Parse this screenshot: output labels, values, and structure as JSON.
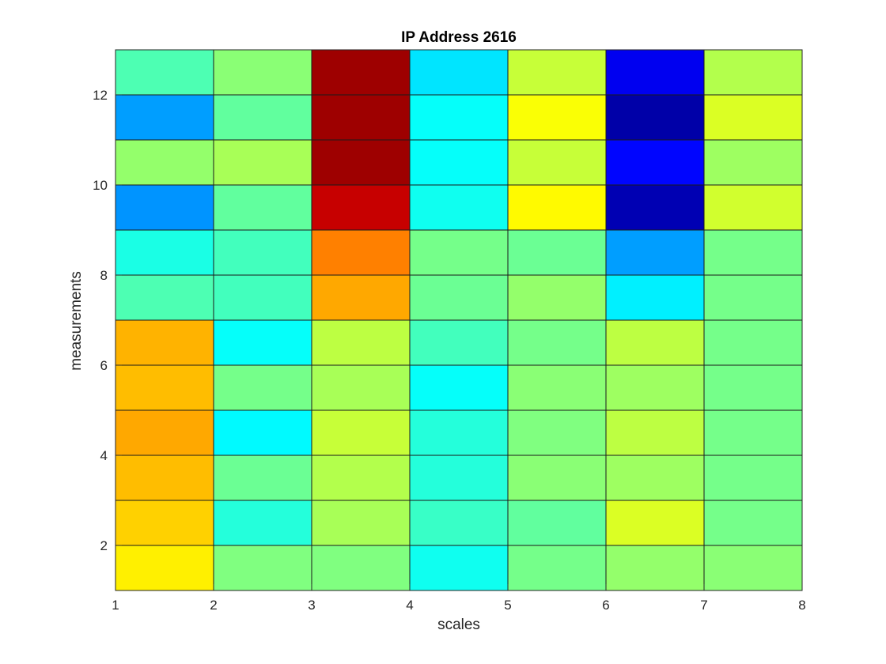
{
  "chart_data": {
    "type": "heatmap",
    "title": "IP Address 2616",
    "xlabel": "scales",
    "ylabel": "measurements",
    "xlim": [
      1,
      8
    ],
    "ylim": [
      1,
      13
    ],
    "x_ticks": [
      "1",
      "2",
      "3",
      "4",
      "5",
      "6",
      "7",
      "8"
    ],
    "y_ticks": [
      "2",
      "4",
      "6",
      "8",
      "10",
      "12"
    ],
    "grid": true,
    "colormap": "jet",
    "color_scale_min": 0,
    "color_scale_max": 1,
    "x_edges": [
      1,
      2,
      3,
      4,
      5,
      6,
      7,
      8
    ],
    "y_edges": [
      1,
      2,
      3,
      4,
      5,
      6,
      7,
      8,
      9,
      10,
      11,
      12,
      13
    ],
    "values_top_to_bottom": [
      [
        0.45,
        0.51,
        0.97,
        0.35,
        0.57,
        0.11,
        0.55
      ],
      [
        0.28,
        0.47,
        0.97,
        0.38,
        0.62,
        0.04,
        0.59
      ],
      [
        0.52,
        0.54,
        0.97,
        0.38,
        0.57,
        0.13,
        0.53
      ],
      [
        0.27,
        0.47,
        0.93,
        0.39,
        0.63,
        0.05,
        0.58
      ],
      [
        0.4,
        0.44,
        0.75,
        0.49,
        0.48,
        0.28,
        0.49
      ],
      [
        0.45,
        0.44,
        0.71,
        0.48,
        0.52,
        0.36,
        0.49
      ],
      [
        0.7,
        0.38,
        0.56,
        0.44,
        0.49,
        0.56,
        0.49
      ],
      [
        0.69,
        0.49,
        0.54,
        0.38,
        0.51,
        0.53,
        0.49
      ],
      [
        0.71,
        0.37,
        0.57,
        0.41,
        0.5,
        0.56,
        0.49
      ],
      [
        0.69,
        0.48,
        0.55,
        0.41,
        0.51,
        0.53,
        0.49
      ],
      [
        0.67,
        0.41,
        0.54,
        0.43,
        0.47,
        0.59,
        0.49
      ],
      [
        0.64,
        0.5,
        0.5,
        0.39,
        0.49,
        0.52,
        0.51
      ]
    ]
  }
}
